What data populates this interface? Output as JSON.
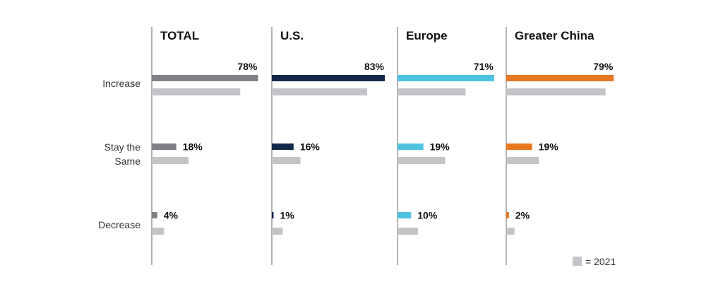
{
  "chart_data": {
    "type": "bar",
    "orientation": "horizontal",
    "categories": [
      "Increase",
      "Stay the Same",
      "Decrease"
    ],
    "category_lines": [
      [
        "Increase"
      ],
      [
        "Stay the",
        "Same"
      ],
      [
        "Decrease"
      ]
    ],
    "value_format": "{v}%",
    "panels": [
      {
        "title": "TOTAL",
        "color": "#808084",
        "values": [
          78,
          18,
          4
        ],
        "values_2021": [
          65,
          27,
          9
        ]
      },
      {
        "title": "U.S.",
        "color": "#14284b",
        "values": [
          83,
          16,
          1
        ],
        "values_2021": [
          70,
          21,
          8
        ]
      },
      {
        "title": "Europe",
        "color": "#4ec3e0",
        "values": [
          71,
          19,
          10
        ],
        "values_2021": [
          50,
          35,
          15
        ]
      },
      {
        "title": "Greater China",
        "color": "#e87722",
        "values": [
          79,
          19,
          2
        ],
        "values_2021": [
          73,
          24,
          6
        ]
      }
    ],
    "comparison_color": "#c4c4c8",
    "legend": {
      "label": "= 2021",
      "placement": "bottom-right"
    },
    "xlim": [
      0,
      83
    ],
    "grid": false
  }
}
